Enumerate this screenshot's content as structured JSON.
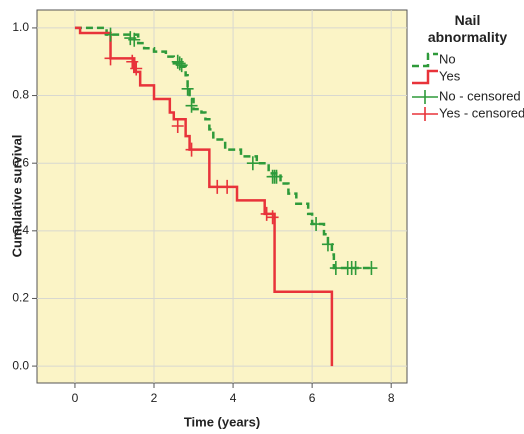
{
  "chart_data": {
    "type": "step",
    "xlabel": "Time (years)",
    "ylabel": "Cumulative survival",
    "legend_title": "Nail abnormality",
    "grid": true,
    "legend": "right",
    "xlim": [
      -0.96,
      8.4
    ],
    "ylim": [
      -0.05,
      1.053
    ],
    "xticks": [
      0,
      2,
      4,
      6,
      8
    ],
    "yticks": [
      {
        "value": 0,
        "label": "0.0"
      },
      0.2,
      0.4,
      0.6,
      0.8,
      {
        "value": 1,
        "label": "1.0"
      }
    ],
    "series": [
      {
        "name": "No",
        "type": "step",
        "color": "#2e9a3a",
        "dashed": true,
        "x": [
          0,
          0.8,
          1.6,
          1.75,
          2.0,
          2.3,
          2.5,
          2.6,
          2.8,
          2.85,
          2.9,
          3.0,
          3.2,
          3.3,
          3.4,
          3.5,
          3.8,
          4.2,
          4.6,
          4.9,
          5.2,
          5.4,
          5.6,
          5.9,
          6.0,
          6.3,
          6.4,
          6.5,
          6.55,
          7.5
        ],
        "values": [
          1,
          0.98,
          0.955,
          0.94,
          0.93,
          0.915,
          0.895,
          0.885,
          0.86,
          0.82,
          0.79,
          0.76,
          0.75,
          0.73,
          0.7,
          0.67,
          0.64,
          0.62,
          0.6,
          0.57,
          0.54,
          0.51,
          0.48,
          0.45,
          0.42,
          0.39,
          0.36,
          0.33,
          0.29,
          0.29
        ]
      },
      {
        "name": "Yes",
        "type": "step",
        "color": "#e8333a",
        "dashed": false,
        "x": [
          0,
          0.13,
          0.9,
          1.5,
          1.65,
          2.0,
          2.4,
          2.5,
          2.8,
          2.9,
          3.4,
          4.1,
          4.8,
          5.05,
          6.5
        ],
        "values": [
          1,
          0.985,
          0.91,
          0.87,
          0.83,
          0.79,
          0.75,
          0.73,
          0.68,
          0.64,
          0.53,
          0.49,
          0.45,
          0.22,
          0
        ]
      },
      {
        "name": "No - censored",
        "type": "censored",
        "color": "#2e9a3a",
        "x": [
          0.9,
          1.4,
          1.5,
          2.6,
          2.65,
          2.7,
          2.85,
          2.95,
          4.5,
          5.0,
          5.05,
          5.1,
          6.1,
          6.4,
          6.6,
          6.9,
          7.0,
          7.1,
          7.5
        ],
        "values": [
          0.98,
          0.97,
          0.965,
          0.9,
          0.895,
          0.89,
          0.82,
          0.77,
          0.6,
          0.56,
          0.56,
          0.56,
          0.42,
          0.36,
          0.29,
          0.29,
          0.29,
          0.29,
          0.29
        ]
      },
      {
        "name": "Yes - censored",
        "type": "censored",
        "color": "#e8333a",
        "x": [
          0.9,
          1.45,
          1.55,
          2.6,
          2.95,
          3.6,
          3.85,
          4.85,
          5.0
        ],
        "values": [
          0.91,
          0.9,
          0.88,
          0.71,
          0.64,
          0.53,
          0.53,
          0.45,
          0.44
        ]
      }
    ]
  }
}
